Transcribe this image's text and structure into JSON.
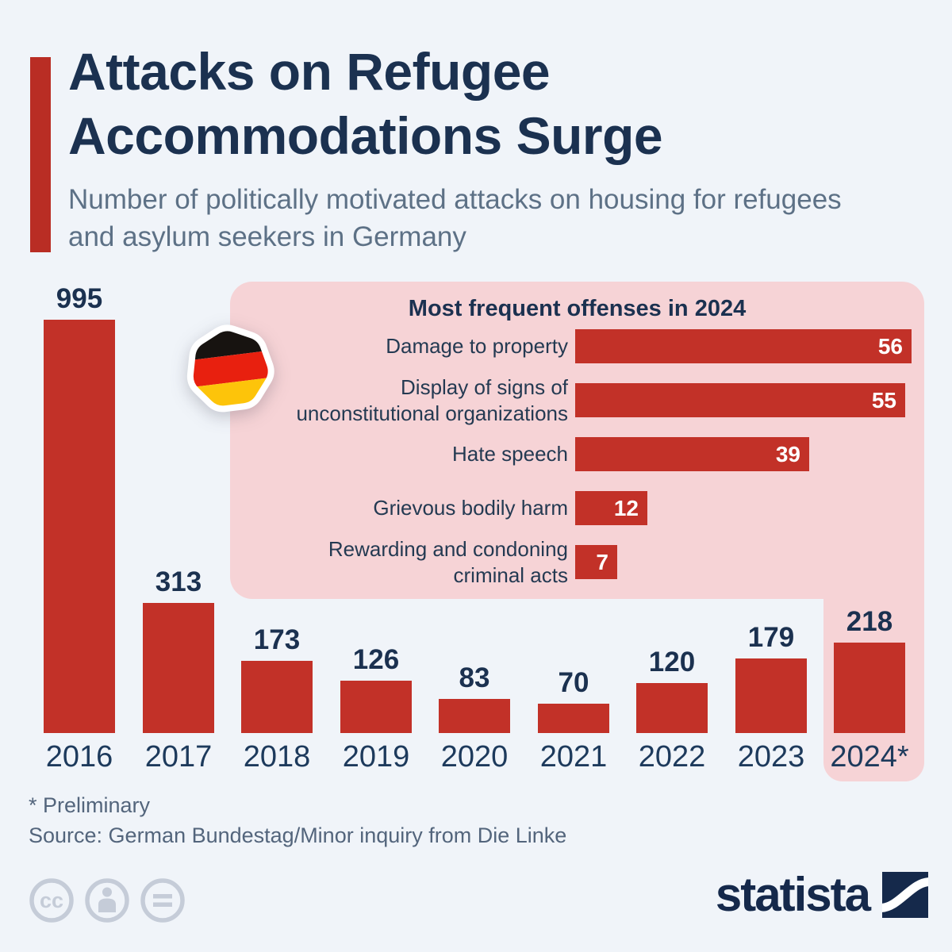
{
  "header": {
    "title": "Attacks on Refugee Accommodations Surge",
    "subtitle": "Number of politically motivated attacks on housing for refugees and asylum seekers in Germany"
  },
  "chart_data": [
    {
      "type": "bar",
      "title": "Number of politically motivated attacks on housing for refugees and asylum seekers in Germany",
      "categories": [
        "2016",
        "2017",
        "2018",
        "2019",
        "2020",
        "2021",
        "2022",
        "2023",
        "2024*"
      ],
      "values": [
        995,
        313,
        173,
        126,
        83,
        70,
        120,
        179,
        218
      ],
      "highlighted_category": "2024*",
      "xlabel": "",
      "ylabel": "",
      "ylim": [
        0,
        1000
      ],
      "grid": false,
      "legend_position": "none"
    },
    {
      "type": "bar",
      "orientation": "horizontal",
      "title": "Most frequent offenses in 2024",
      "categories": [
        "Damage to property",
        "Display of signs of\nunconstitutional organizations",
        "Hate speech",
        "Grievous bodily harm",
        "Rewarding and condoning\ncriminal acts"
      ],
      "values": [
        56,
        55,
        39,
        12,
        7
      ],
      "xlim": [
        0,
        58
      ],
      "grid": false,
      "legend_position": "none"
    }
  ],
  "footer": {
    "note": "* Preliminary",
    "source": "Source: German Bundestag/Minor inquiry from Die Linke"
  },
  "branding": {
    "wordmark": "statista"
  },
  "icons": {
    "flag": "german-flag-icon",
    "license": [
      "cc-icon",
      "cc-by-person-icon",
      "cc-nd-equals-icon"
    ],
    "logo": "statista-logo-icon"
  },
  "colors": {
    "background": "#f0f4f9",
    "bar_red": "#c23128",
    "accent_red": "#b92d24",
    "panel_pink": "#f6d3d6",
    "title_navy": "#1b3150",
    "subtitle_slate": "#5d7186",
    "footer_slate": "#53657c",
    "value_white": "#ffffff",
    "flag_black": "#171310",
    "flag_red": "#e8200f",
    "flag_gold": "#fdc40a",
    "cc_gray": "#c5ccd8",
    "logo_navy": "#15294b"
  }
}
